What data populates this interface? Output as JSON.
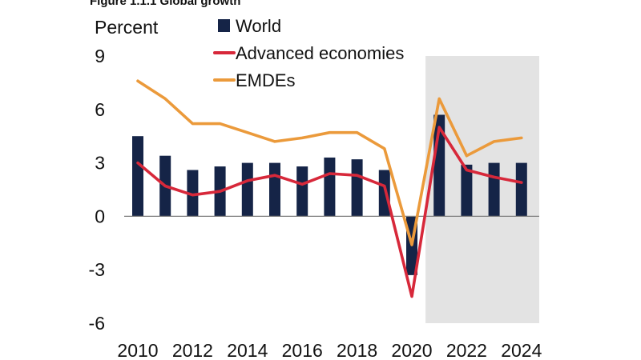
{
  "chart_data": {
    "type": "bar+line",
    "title": "Figure 1.1.1 Global growth",
    "ylabel": "Percent",
    "ylim": [
      -6,
      9
    ],
    "yticks": [
      "9",
      "6",
      "3",
      "0",
      "-3",
      "-6"
    ],
    "ytick_values": [
      9,
      6,
      3,
      0,
      -3,
      -6
    ],
    "x": [
      2010,
      2011,
      2012,
      2013,
      2014,
      2015,
      2016,
      2017,
      2018,
      2019,
      2020,
      2021,
      2022,
      2023,
      2024
    ],
    "xtick_labels": [
      "2010",
      "2012",
      "2014",
      "2016",
      "2018",
      "2020",
      "2022",
      "2024"
    ],
    "forecast_shade_from": 2021,
    "legend_position": "top",
    "series": [
      {
        "name": "World",
        "kind": "bar",
        "color": "#152447",
        "values": [
          4.5,
          3.4,
          2.6,
          2.8,
          3.0,
          3.0,
          2.8,
          3.3,
          3.2,
          2.6,
          -3.3,
          5.7,
          2.9,
          3.0,
          3.0
        ]
      },
      {
        "name": "Advanced economies",
        "kind": "line",
        "color": "#d7283a",
        "values": [
          3.0,
          1.7,
          1.2,
          1.4,
          2.0,
          2.3,
          1.8,
          2.4,
          2.3,
          1.7,
          -4.5,
          5.0,
          2.6,
          2.2,
          1.9
        ]
      },
      {
        "name": "EMDEs",
        "kind": "line",
        "color": "#eb9a3b",
        "values": [
          7.6,
          6.6,
          5.2,
          5.2,
          4.7,
          4.2,
          4.4,
          4.7,
          4.7,
          3.8,
          -1.6,
          6.6,
          3.4,
          4.2,
          4.4
        ]
      }
    ],
    "shade_color": "#e3e3e3",
    "axis_color": "#7f7f7f",
    "grid": false
  }
}
